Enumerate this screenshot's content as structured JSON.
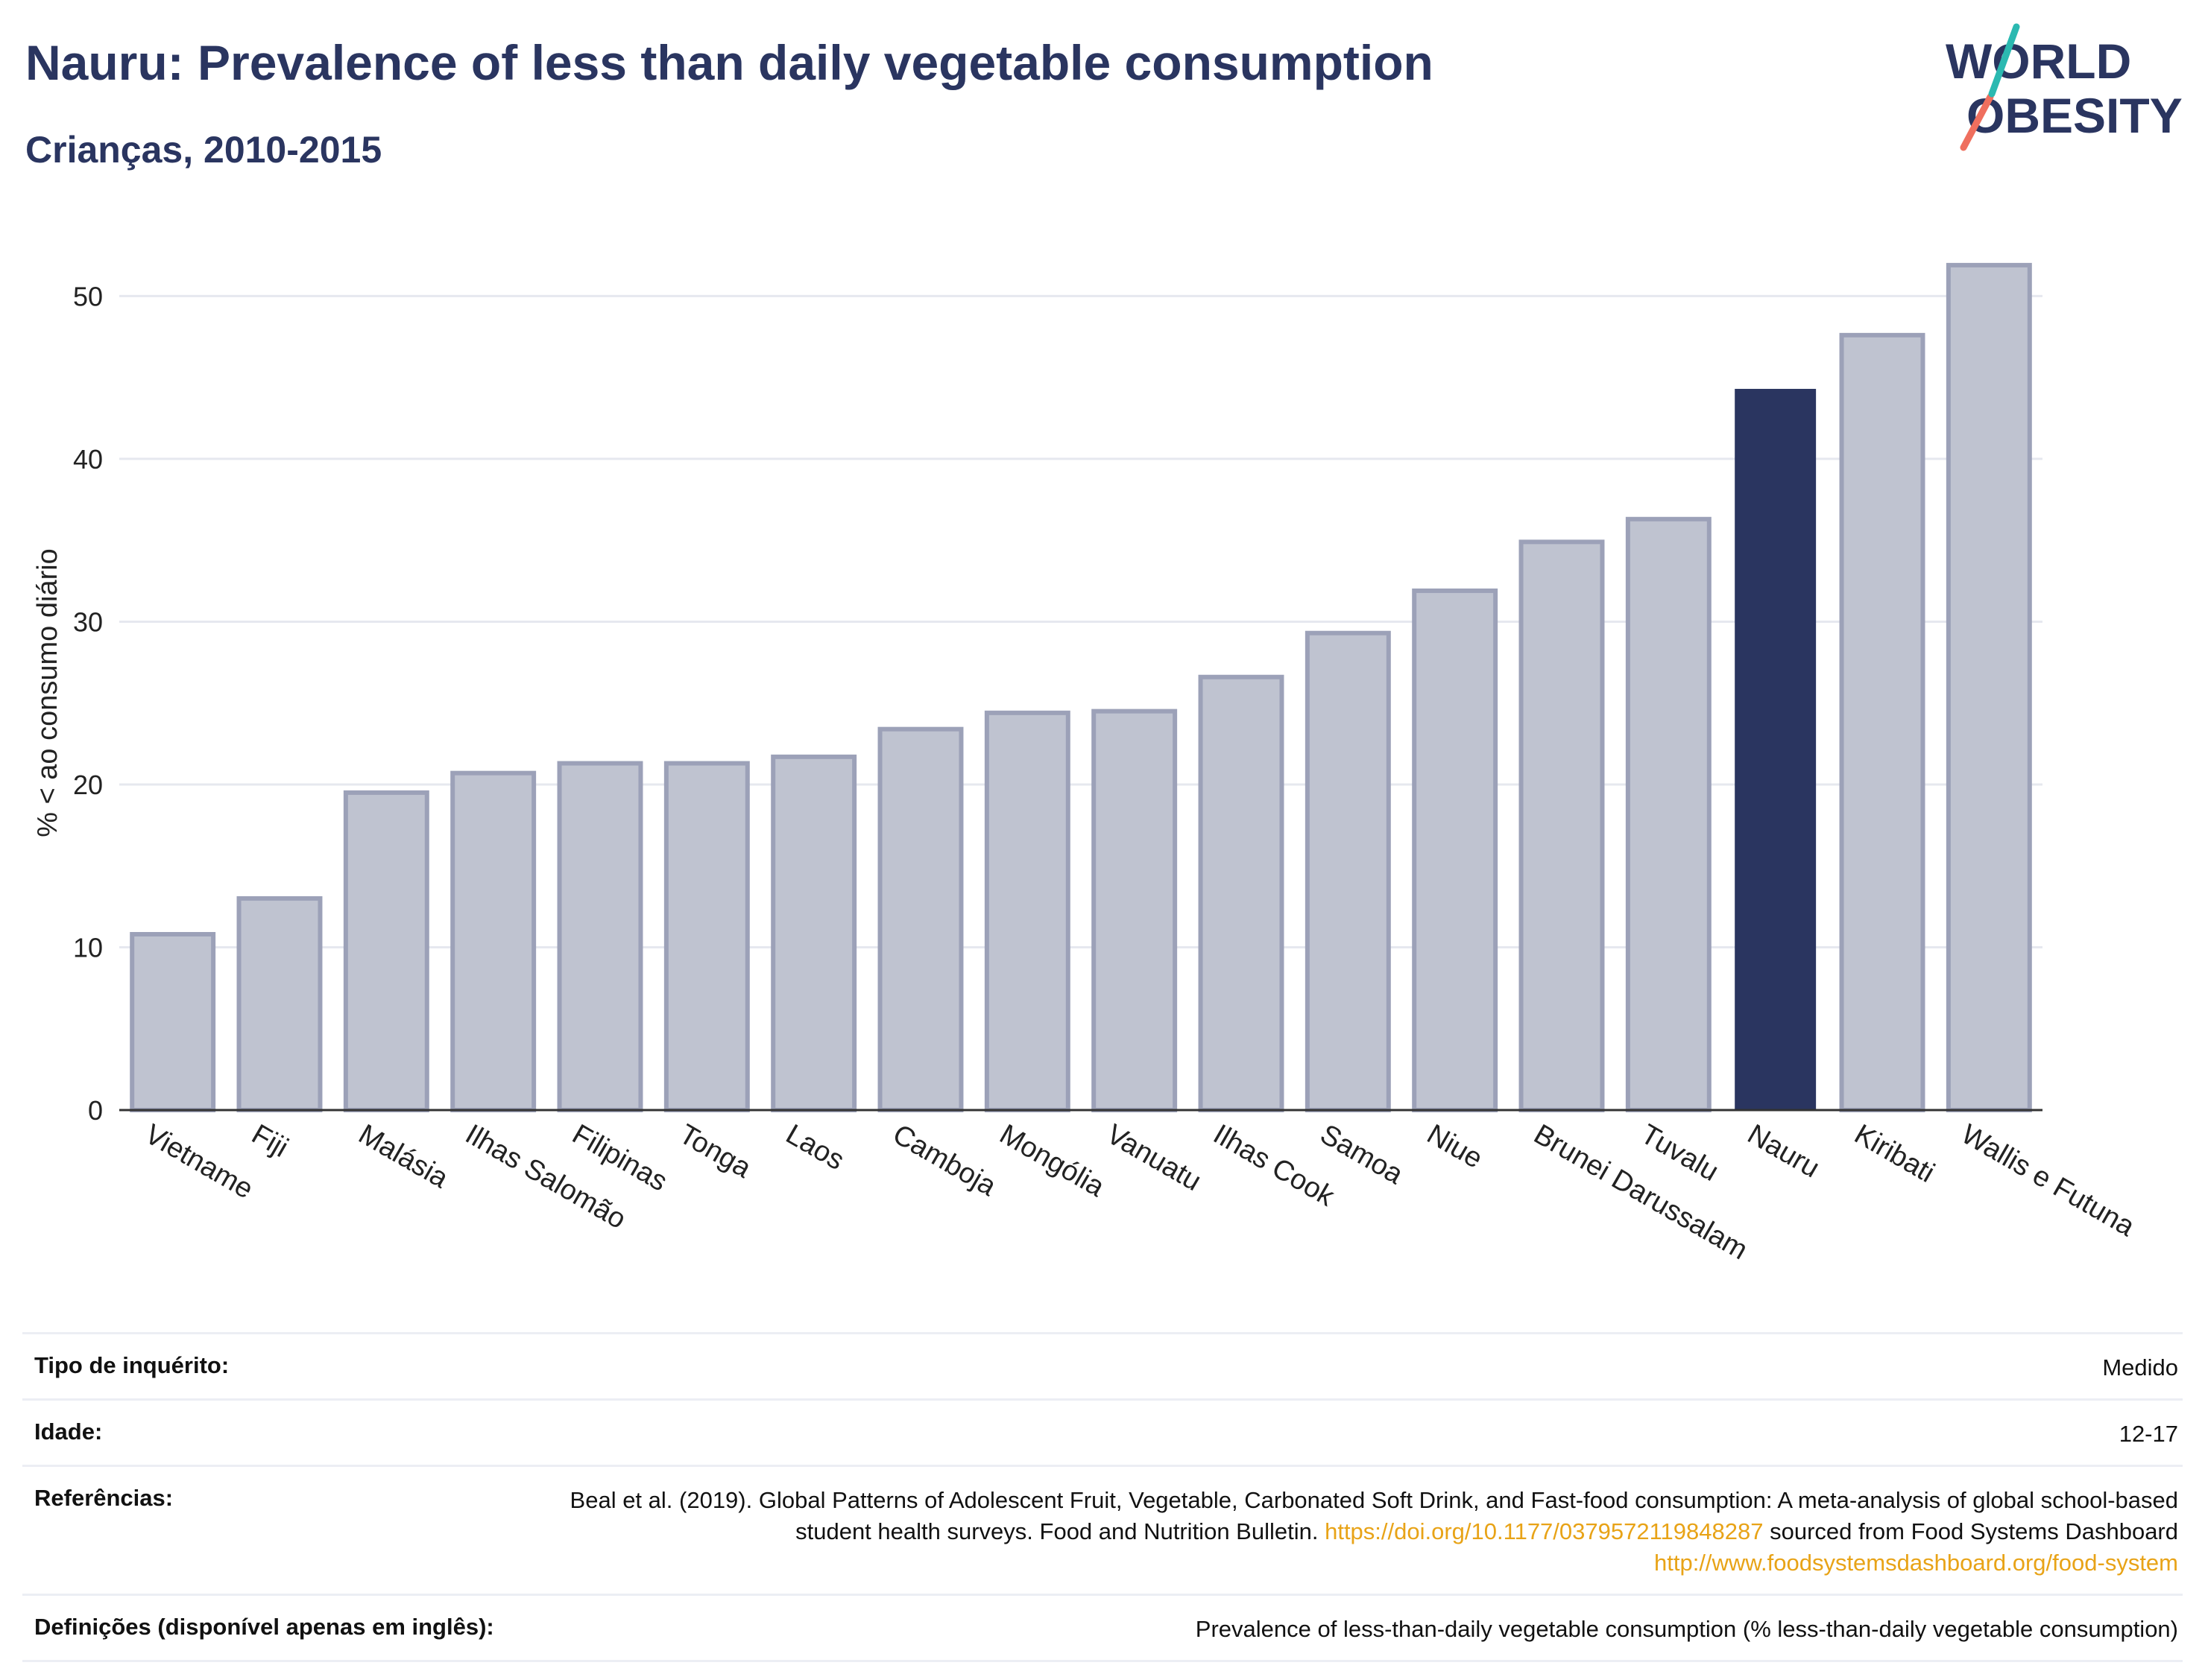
{
  "header": {
    "title": "Nauru: Prevalence of less than daily vegetable consumption",
    "subtitle": "Crianças, 2010-2015"
  },
  "logo": {
    "line1": "WORLD",
    "line2": "OBESITY",
    "accent_teal": "#2bb9b1",
    "accent_coral": "#ef6f5e",
    "text_color": "#2a3560"
  },
  "colors": {
    "highlight": "#2a3560",
    "bar_fill": "#bfc3d0",
    "bar_stroke": "#9ca1b8",
    "grid": "#e6e8ef"
  },
  "chart_data": {
    "type": "bar",
    "title": "Nauru: Prevalence of less than daily vegetable consumption",
    "subtitle": "Crianças, 2010-2015",
    "ylabel": "% < ao consumo diário",
    "xlabel": "",
    "ylim": [
      0,
      54
    ],
    "yticks": [
      0,
      10,
      20,
      30,
      40,
      50
    ],
    "grid": true,
    "highlight": "Nauru",
    "categories": [
      "Vietname",
      "Fiji",
      "Malásia",
      "Ilhas Salomão",
      "Filipinas",
      "Tonga",
      "Laos",
      "Camboja",
      "Mongólia",
      "Vanuatu",
      "Ilhas Cook",
      "Samoa",
      "Niue",
      "Brunei Darussalam",
      "Tuvalu",
      "Nauru",
      "Kiribati",
      "Wallis e Futuna"
    ],
    "values": [
      10.8,
      13.0,
      19.5,
      20.7,
      21.3,
      21.3,
      21.7,
      23.4,
      24.4,
      24.5,
      26.6,
      29.3,
      31.9,
      34.9,
      36.3,
      44.3,
      47.6,
      51.9
    ]
  },
  "info": {
    "rows": [
      {
        "key": "Tipo de inquérito:",
        "value": "Medido"
      },
      {
        "key": "Idade:",
        "value": "12-17"
      }
    ],
    "references": {
      "key": "Referências:",
      "text1": "Beal et al. (2019). Global Patterns of Adolescent Fruit, Vegetable, Carbonated Soft Drink, and Fast-food consumption: A meta-analysis of global school-based student health surveys. Food and Nutrition Bulletin.",
      "link1": "https://doi.org/10.1177/0379572119848287",
      "text2": "sourced from Food Systems Dashboard",
      "link2": "http://www.foodsystemsdashboard.org/food-system"
    },
    "definitions": {
      "key": "Definições (disponível apenas em inglês):",
      "value": "Prevalence of less-than-daily vegetable consumption (% less-than-daily vegetable consumption)"
    }
  }
}
